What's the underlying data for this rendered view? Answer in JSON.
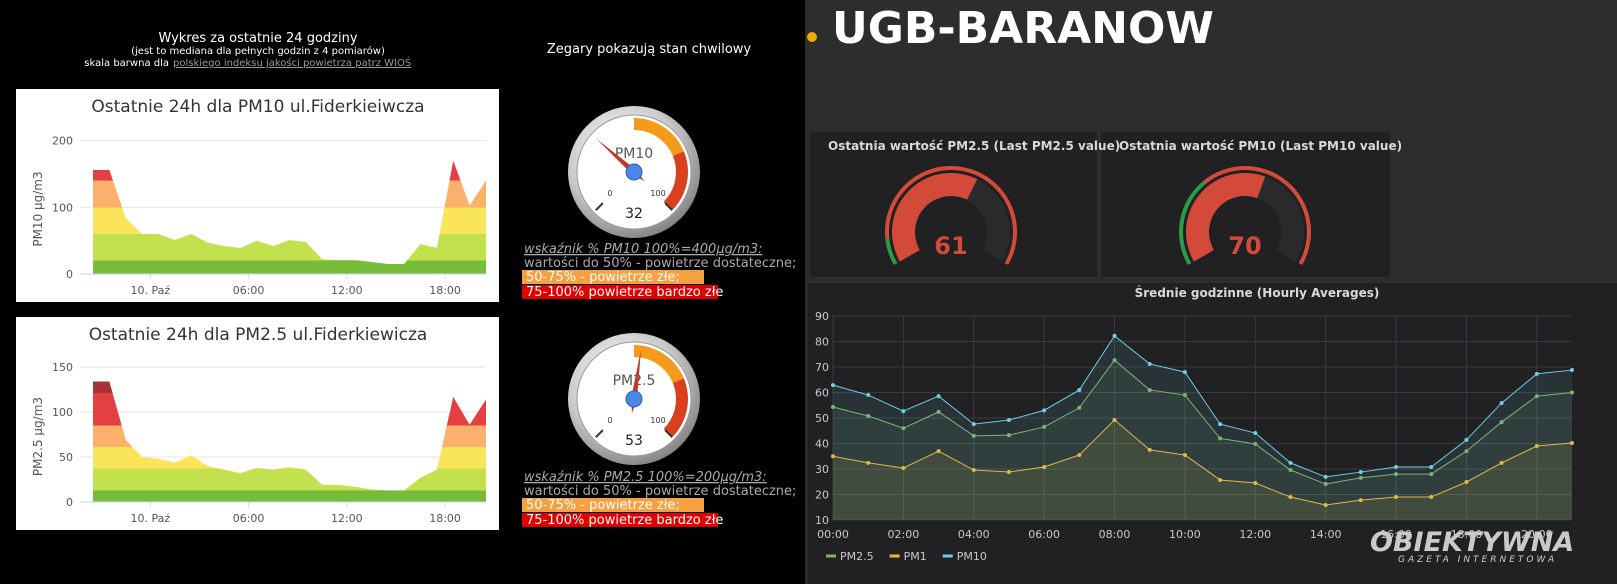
{
  "left_header": {
    "title": "Wykres za ostatnie 24 godziny",
    "subtitle": "(jest to mediana dla pełnych godzin z 4 pomiarów)",
    "scale_text": "skala barwna dla",
    "scale_link": "polskiego indeksu jakości powietrza patrz WIOŚ"
  },
  "gauges_caption": "Zegary pokazują stan chwilowy",
  "right_title": "UGB-BARANOW",
  "watermark": {
    "name": "OBIEKTYWNA",
    "tagline": "GAZETA INTERNETOWA"
  },
  "legends": [
    {
      "title": "wskaźnik % PM10  100%=400µg/m3:",
      "lines": [
        "wartości do 50% - powietrze dostateczne;",
        "50-75% - powietrze złe;",
        "75-100% powietrze bardzo złe"
      ]
    },
    {
      "title": "wskaźnik % PM2.5  100%=200µg/m3:",
      "lines": [
        "wartości do 50% - powietrze dostateczne;",
        "50-75% - powietrze złe;",
        "75-100% powietrze bardzo złe"
      ]
    }
  ],
  "chart_data": [
    {
      "type": "area",
      "title": "Ostatnie 24h dla PM10 ul.Fiderkieiwcza",
      "y_label": "PM10 µg/m3",
      "x": [
        -3.5,
        -2.5,
        -1.5,
        -0.5,
        0.5,
        1.5,
        2.5,
        3.5,
        4.5,
        5.5,
        6.5,
        7.5,
        8.5,
        9.5,
        10.5,
        11.5,
        12.5,
        13.5,
        14.5,
        15.5,
        16.5,
        17.5,
        18.5,
        19.5,
        20.5
      ],
      "values": [
        156,
        156,
        84,
        60,
        60,
        51,
        60,
        47,
        42,
        39,
        50,
        42,
        51,
        48,
        22,
        21,
        21,
        18,
        15,
        15,
        45,
        39,
        170,
        103,
        140
      ],
      "xlim": [
        -3.5,
        20.5
      ],
      "ylim": [
        0,
        225
      ],
      "yticks": [
        0,
        100,
        200
      ],
      "xticks": [
        {
          "value": 0,
          "label": "10. Paź"
        },
        {
          "value": 6,
          "label": "06:00"
        },
        {
          "value": 12,
          "label": "12:00"
        },
        {
          "value": 18,
          "label": "18:00"
        }
      ],
      "grid": true,
      "bands": [
        {
          "from": 0,
          "color": "#76bb3a"
        },
        {
          "from": 20,
          "color": "#c3e04e"
        },
        {
          "from": 60,
          "color": "#f9e45a"
        },
        {
          "from": 100,
          "color": "#fbb06c"
        },
        {
          "from": 140,
          "color": "#e43f42"
        }
      ]
    },
    {
      "type": "area",
      "title": "Ostatnie 24h dla PM2.5 ul.Fiderkiewicza",
      "y_label": "PM2.5 µg/m3",
      "x": [
        -3.5,
        -2.5,
        -1.5,
        -0.5,
        0.5,
        1.5,
        2.5,
        3.5,
        4.5,
        5.5,
        6.5,
        7.5,
        8.5,
        9.5,
        10.5,
        11.5,
        12.5,
        13.5,
        14.5,
        15.5,
        16.5,
        17.5,
        18.5,
        19.5,
        20.5
      ],
      "values": [
        134,
        134,
        69,
        50,
        48,
        44,
        52,
        40,
        36,
        32,
        38,
        36,
        39,
        36,
        19,
        19,
        17,
        14,
        13,
        13,
        27,
        36,
        117,
        86,
        114
      ],
      "xlim": [
        -3.5,
        20.5
      ],
      "ylim": [
        0,
        168
      ],
      "yticks": [
        0,
        50,
        100,
        150
      ],
      "xticks": [
        {
          "value": 0,
          "label": "10. Paź"
        },
        {
          "value": 6,
          "label": "06:00"
        },
        {
          "value": 12,
          "label": "12:00"
        },
        {
          "value": 18,
          "label": "18:00"
        }
      ],
      "grid": true,
      "bands": [
        {
          "from": 0,
          "color": "#76bb3a"
        },
        {
          "from": 13,
          "color": "#c3e04e"
        },
        {
          "from": 37,
          "color": "#f9e45a"
        },
        {
          "from": 61,
          "color": "#fbb06c"
        },
        {
          "from": 85,
          "color": "#e43f42"
        },
        {
          "from": 121,
          "color": "#a8323a"
        }
      ]
    },
    {
      "type": "dial",
      "label": "PM10",
      "value": 32,
      "range": [
        0,
        100
      ],
      "ticks": [
        0,
        100
      ],
      "bands": [
        {
          "from": 50,
          "to": 75,
          "color": "#f59a1b"
        },
        {
          "from": 75,
          "to": 100,
          "color": "#d9411e"
        }
      ]
    },
    {
      "type": "dial",
      "label": "PM2.5",
      "value": 53,
      "range": [
        0,
        100
      ],
      "ticks": [
        0,
        100
      ],
      "bands": [
        {
          "from": 50,
          "to": 75,
          "color": "#f59a1b"
        },
        {
          "from": 75,
          "to": 100,
          "color": "#d9411e"
        }
      ]
    },
    {
      "type": "gauge",
      "title": "Ostatnia wartość PM2.5 (Last PM2.5 value)",
      "value": 61,
      "range": [
        0,
        100
      ],
      "color": "#d44a3a",
      "thresholds": [
        {
          "from": 0,
          "color": "#299c46"
        },
        {
          "from": 10,
          "color": "#d44a3a"
        }
      ]
    },
    {
      "type": "gauge",
      "title": "Ostatnia wartość PM10 (Last PM10 value)",
      "value": 70,
      "range": [
        0,
        120
      ],
      "color": "#d44a3a",
      "thresholds": [
        {
          "from": 0,
          "color": "#299c46"
        },
        {
          "from": 40,
          "color": "#d44a3a"
        }
      ]
    },
    {
      "type": "line",
      "title": "Średnie godzinne (Hourly Averages)",
      "x": [
        0,
        1,
        2,
        3,
        4,
        5,
        6,
        7,
        8,
        9,
        10,
        11,
        12,
        13,
        14,
        15,
        16,
        17,
        18,
        19,
        20,
        21
      ],
      "series": [
        {
          "name": "PM2.5",
          "color": "#7eb26d",
          "values": [
            54.3,
            50.8,
            46,
            52.4,
            43,
            43.3,
            46.5,
            54,
            72.7,
            61,
            59,
            42,
            39.8,
            29.6,
            24.1,
            26.5,
            28,
            28,
            37,
            48.4,
            58.6,
            60
          ]
        },
        {
          "name": "PM1",
          "color": "#eab839",
          "values": [
            35,
            32.4,
            30.4,
            37,
            29.6,
            28.8,
            30.8,
            35.5,
            49.2,
            37.5,
            35.5,
            25.7,
            24.5,
            19,
            15.9,
            17.8,
            19,
            19,
            24.9,
            32.4,
            39,
            40.2
          ]
        },
        {
          "name": "PM10",
          "color": "#6ed0e0",
          "values": [
            62.9,
            59,
            52.7,
            58.6,
            47.6,
            49.2,
            53,
            61,
            82.2,
            71.2,
            68,
            47.6,
            44.1,
            32.4,
            26.9,
            28.8,
            30.8,
            30.8,
            41.4,
            55.9,
            67.3,
            68.8
          ]
        }
      ],
      "xlim": [
        0,
        21
      ],
      "ylim": [
        10,
        90
      ],
      "yticks": [
        10,
        20,
        30,
        40,
        50,
        60,
        70,
        80,
        90
      ],
      "xticks": [
        {
          "value": 0,
          "label": "00:00"
        },
        {
          "value": 2,
          "label": "02:00"
        },
        {
          "value": 4,
          "label": "04:00"
        },
        {
          "value": 6,
          "label": "06:00"
        },
        {
          "value": 8,
          "label": "08:00"
        },
        {
          "value": 10,
          "label": "10:00"
        },
        {
          "value": 12,
          "label": "12:00"
        },
        {
          "value": 14,
          "label": "14:00"
        },
        {
          "value": 16,
          "label": "16:00"
        },
        {
          "value": 18,
          "label": "18:00"
        },
        {
          "value": 20,
          "label": "20:00"
        }
      ],
      "grid": true
    }
  ]
}
